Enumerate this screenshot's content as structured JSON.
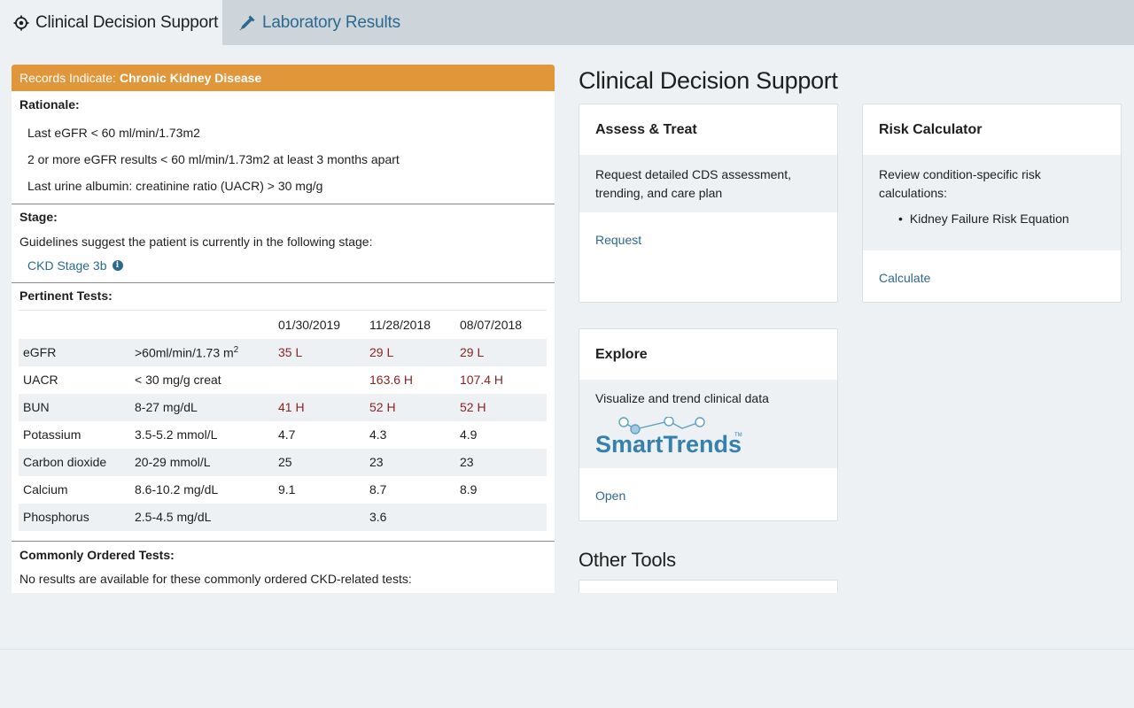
{
  "tabs": [
    {
      "label": "Clinical Decision Support",
      "icon": "crosshair-icon",
      "active": true
    },
    {
      "label": "Laboratory Results",
      "icon": "pipette-icon",
      "active": false
    }
  ],
  "condition": {
    "prefix": "Records Indicate:",
    "name": "Chronic Kidney Disease",
    "color": "#e2963a"
  },
  "rationale": {
    "title": "Rationale:",
    "items": [
      "Last eGFR < 60 ml/min/1.73m2",
      "2 or more eGFR results < 60 ml/min/1.73m2 at least 3 months apart",
      "Last urine albumin: creatinine ratio (UACR) > 30 mg/g"
    ]
  },
  "stage": {
    "title": "Stage:",
    "text": "Guidelines suggest the patient is currently in the following stage:",
    "value": "CKD Stage 3b",
    "info_icon": "i"
  },
  "tests": {
    "title": "Pertinent Tests:",
    "dates": [
      "01/30/2019",
      "11/28/2018",
      "08/07/2018"
    ],
    "rows": [
      {
        "name": "eGFR",
        "range": ">60ml/min/1.73 m",
        "range_sup": "2",
        "values": [
          "35 L",
          "29 L",
          "29 L"
        ],
        "flags": [
          true,
          true,
          true
        ]
      },
      {
        "name": "UACR",
        "range": "< 30 mg/g creat",
        "values": [
          "",
          "163.6 H",
          "107.4 H"
        ],
        "flags": [
          false,
          true,
          true
        ]
      },
      {
        "name": "BUN",
        "range": "8-27 mg/dL",
        "values": [
          "41 H",
          "52 H",
          "52 H"
        ],
        "flags": [
          true,
          true,
          true
        ]
      },
      {
        "name": "Potassium",
        "range": "3.5-5.2 mmol/L",
        "values": [
          "4.7",
          "4.3",
          "4.9"
        ],
        "flags": [
          false,
          false,
          false
        ]
      },
      {
        "name": "Carbon dioxide",
        "range": "20-29 mmol/L",
        "values": [
          "25",
          "23",
          "23"
        ],
        "flags": [
          false,
          false,
          false
        ]
      },
      {
        "name": "Calcium",
        "range": "8.6-10.2 mg/dL",
        "values": [
          "9.1",
          "8.7",
          "8.9"
        ],
        "flags": [
          false,
          false,
          false
        ]
      },
      {
        "name": "Phosphorus",
        "range": "2.5-4.5 mg/dL",
        "values": [
          "",
          "3.6",
          ""
        ],
        "flags": [
          false,
          false,
          false
        ]
      }
    ],
    "flag_color": "#8a2423"
  },
  "common": {
    "title": "Commonly Ordered Tests:",
    "text": "No results are available for these commonly ordered CKD-related tests:"
  },
  "cds": {
    "heading": "Clinical Decision Support",
    "assess": {
      "title": "Assess & Treat",
      "body": "Request detailed CDS assessment, trending, and care plan",
      "link": "Request"
    },
    "risk": {
      "title": "Risk Calculator",
      "body": "Review condition-specific risk calculations:",
      "items": [
        "Kidney Failure Risk Equation"
      ],
      "link": "Calculate"
    },
    "explore": {
      "title": "Explore",
      "body": "Visualize and trend clinical data",
      "logo_text": "SmartTrends",
      "logo_tm": "TM",
      "link": "Open"
    },
    "other_heading": "Other Tools"
  },
  "colors": {
    "link": "#2b6a8f",
    "background": "#edf1f4",
    "tabbar": "#cdd5db"
  }
}
